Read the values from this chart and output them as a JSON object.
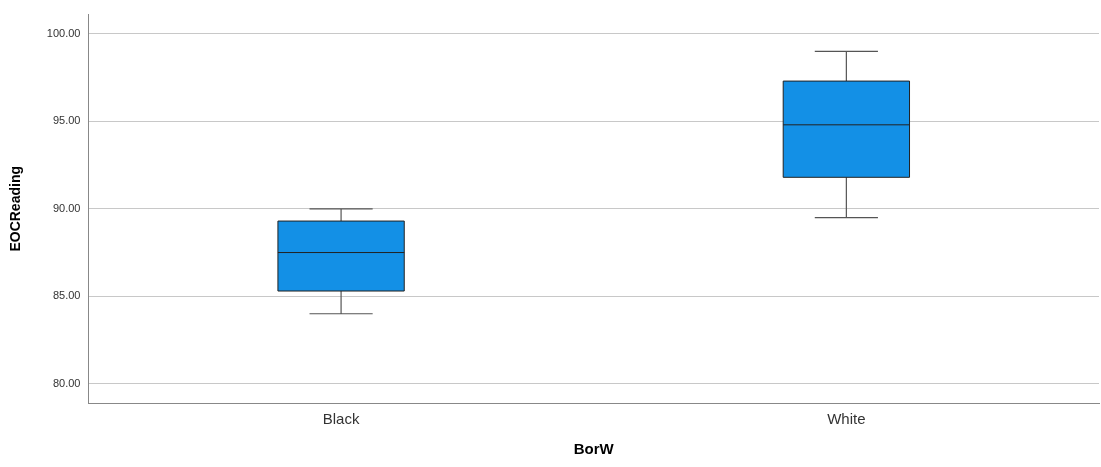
{
  "chart_data": {
    "type": "box",
    "xlabel": "BorW",
    "ylabel": "EOCReading",
    "categories": [
      "Black",
      "White"
    ],
    "color": "#1390e6",
    "boxes": [
      {
        "low": 84.0,
        "q1": 85.3,
        "median": 87.5,
        "q3": 89.3,
        "high": 90.0
      },
      {
        "low": 89.5,
        "q1": 91.8,
        "median": 94.8,
        "q3": 97.3,
        "high": 99.0
      }
    ],
    "ylim": [
      78.9,
      101.1
    ],
    "yticks": [
      {
        "value": 80,
        "label": "80.00"
      },
      {
        "value": 85,
        "label": "85.00"
      },
      {
        "value": 90,
        "label": "90.00"
      },
      {
        "value": 95,
        "label": "95.00"
      },
      {
        "value": 100,
        "label": "100.00"
      }
    ],
    "grid": "y",
    "legend": false
  }
}
